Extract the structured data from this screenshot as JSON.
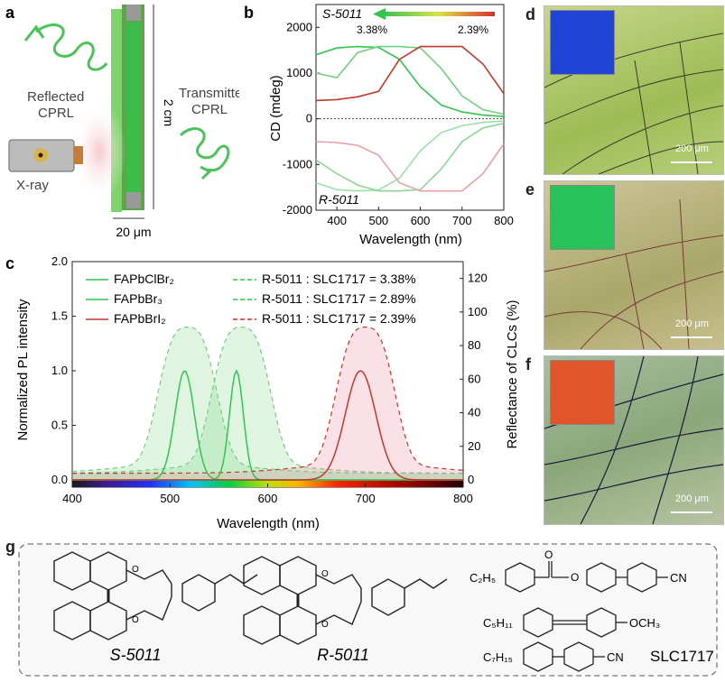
{
  "panels": {
    "a": {
      "label": "a",
      "reflected": "Reflected\nCPRL",
      "transmitted": "Transmitted\nCPRL",
      "length": "2 cm",
      "width": "20 μm",
      "xray": "X-ray"
    },
    "b": {
      "label": "b",
      "top_tag": "S-5011",
      "bottom_tag": "R-5011",
      "arrow_left": "3.38%",
      "arrow_right": "2.39%",
      "xlabel": "Wavelength (nm)",
      "ylabel": "CD (mdeg)",
      "xticks": [
        "400",
        "500",
        "600",
        "700",
        "800"
      ],
      "yticks": [
        "2000",
        "1000",
        "0",
        "-1000",
        "-2000"
      ]
    },
    "c": {
      "label": "c",
      "xlabel": "Wavelength (nm)",
      "ylabel_left": "Normalized PL intensity",
      "ylabel_right": "Reflectance of CLCs (%)",
      "xticks": [
        "400",
        "500",
        "600",
        "700",
        "800"
      ],
      "yticks_left": [
        "0.0",
        "0.5",
        "1.0",
        "1.5",
        "2.0"
      ],
      "yticks_right": [
        "0",
        "20",
        "40",
        "60",
        "80",
        "100",
        "120"
      ],
      "legend_left": [
        "FAPbClBr₂",
        "FAPbBr₃",
        "FAPbBrI₂"
      ],
      "legend_right": [
        "R-5011 : SLC1717 = 3.38%",
        "R-5011 : SLC1717 = 2.89%",
        "R-5011 : SLC1717 = 2.39%"
      ]
    },
    "d": {
      "label": "d",
      "scale": "200 μm"
    },
    "e": {
      "label": "e",
      "scale": "200 μm"
    },
    "f": {
      "label": "f",
      "scale": "200 μm"
    },
    "g": {
      "label": "g",
      "s_name": "S-5011",
      "r_name": "R-5011",
      "slc_name": "SLC1717",
      "c2h5": "C₂H₅",
      "c5h11": "C₅H₁₁",
      "c7h15": "C₇H₁₅",
      "cn": "CN",
      "och3": "OCH₃",
      "o_carbonyl": "O",
      "o_ester": "O",
      "ring_o": "O"
    }
  },
  "colors": {
    "green": "#33c44f",
    "red": "#c0392b",
    "pink": "#e8a0a8",
    "panel_d": "#1f44d6",
    "panel_e": "#27c25a",
    "panel_f": "#e0552a"
  },
  "chart_data": [
    {
      "type": "line",
      "title": "",
      "xlabel": "Wavelength (nm)",
      "ylabel": "CD (mdeg)",
      "xlim": [
        350,
        800
      ],
      "ylim": [
        -2000,
        2500
      ],
      "series": [
        {
          "name": "S-5011 3.38%",
          "color": "#33c44f",
          "x": [
            350,
            400,
            450,
            500,
            550,
            600,
            650,
            700,
            750,
            800
          ],
          "y": [
            1400,
            1550,
            1580,
            1560,
            1300,
            700,
            300,
            150,
            80,
            50
          ]
        },
        {
          "name": "S-5011 2.89%",
          "color": "#6fd07f",
          "x": [
            350,
            400,
            450,
            500,
            550,
            600,
            650,
            700,
            750,
            800
          ],
          "y": [
            1000,
            900,
            1450,
            1580,
            1580,
            1550,
            1100,
            500,
            200,
            100
          ]
        },
        {
          "name": "S-5011 2.39%",
          "color": "#c0392b",
          "x": [
            350,
            400,
            450,
            500,
            550,
            600,
            650,
            700,
            750,
            800
          ],
          "y": [
            400,
            420,
            480,
            600,
            1300,
            1580,
            1580,
            1580,
            1200,
            550
          ]
        },
        {
          "name": "R-5011 3.38%",
          "color": "#9fe0aa",
          "x": [
            350,
            400,
            450,
            500,
            550,
            600,
            650,
            700,
            750,
            800
          ],
          "y": [
            -1400,
            -1550,
            -1580,
            -1560,
            -1300,
            -700,
            -300,
            -150,
            -80,
            -50
          ]
        },
        {
          "name": "R-5011 2.89%",
          "color": "#8fd49b",
          "x": [
            350,
            400,
            450,
            500,
            550,
            600,
            650,
            700,
            750,
            800
          ],
          "y": [
            -900,
            -1200,
            -1450,
            -1580,
            -1580,
            -1550,
            -1100,
            -500,
            -200,
            -100
          ]
        },
        {
          "name": "R-5011 2.39%",
          "color": "#e8a0a8",
          "x": [
            350,
            400,
            450,
            500,
            550,
            600,
            650,
            700,
            750,
            800
          ],
          "y": [
            -500,
            -520,
            -580,
            -800,
            -1400,
            -1580,
            -1580,
            -1580,
            -1200,
            -550
          ]
        }
      ]
    },
    {
      "type": "line",
      "title": "",
      "xlabel": "Wavelength (nm)",
      "ylabel": "Normalized PL intensity",
      "xlim": [
        400,
        800
      ],
      "ylim": [
        0,
        2.0
      ],
      "series": [
        {
          "name": "FAPbClBr₂",
          "color": "#33c44f",
          "peak": 515,
          "width": 14,
          "height": 1.0
        },
        {
          "name": "FAPbBr₃",
          "color": "#33c44f",
          "peak": 568,
          "width": 10,
          "height": 1.0
        },
        {
          "name": "FAPbBrI₂",
          "color": "#c0392b",
          "peak": 695,
          "width": 22,
          "height": 1.0
        }
      ],
      "reflectance": [
        {
          "name": "R-5011 : SLC1717 = 3.38%",
          "color": "#6fd07f",
          "center": 518,
          "height": 81
        },
        {
          "name": "R-5011 : SLC1717 = 2.89%",
          "color": "#6fd07f",
          "center": 573,
          "height": 81
        },
        {
          "name": "R-5011 : SLC1717 = 2.39%",
          "color": "#c0392b",
          "center": 700,
          "height": 81
        }
      ]
    }
  ]
}
